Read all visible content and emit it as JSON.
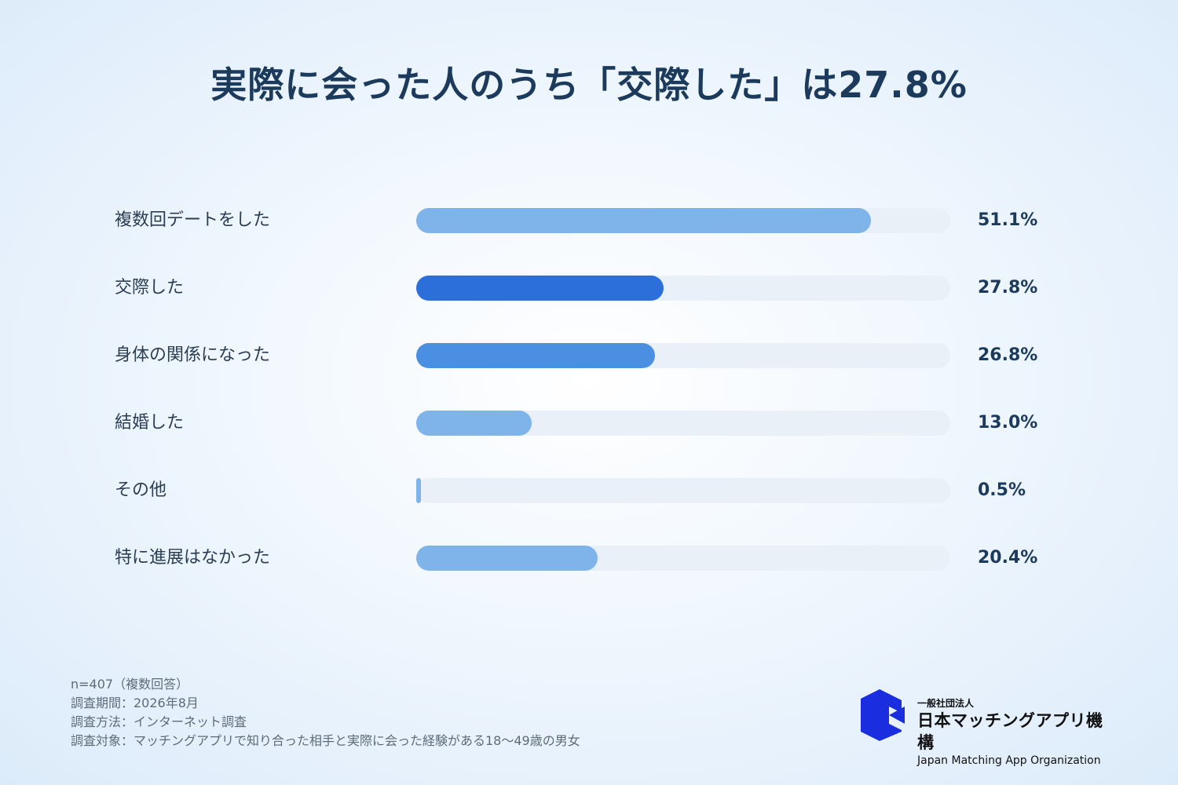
{
  "chart_data": {
    "type": "bar",
    "orientation": "horizontal",
    "title": "実際に会った人のうち「交際した」は27.8%",
    "categories": [
      "複数回デートをした",
      "交際した",
      "身体の関係になった",
      "結婚した",
      "その他",
      "特に進展はなかった"
    ],
    "values": [
      51.1,
      27.8,
      26.8,
      13.0,
      0.5,
      20.4
    ],
    "value_labels": [
      "51.1%",
      "27.8%",
      "26.8%",
      "13.0%",
      "0.5%",
      "20.4%"
    ],
    "xlim": [
      0,
      60
    ],
    "grid": false,
    "legend": "none",
    "colors": [
      "#7fb4ea",
      "#2c6fdb",
      "#4a8fe2",
      "#7fb4ea",
      "#7fb4ea",
      "#7fb4ea"
    ],
    "track_color": "#e9f0f8"
  },
  "footnotes": [
    "n=407（複数回答）",
    "調査期間：2026年8月",
    "調査方法：インターネット調査",
    "調査対象：マッチングアプリで知り合った相手と実際に会った経験がある18〜49歳の男女"
  ],
  "logo": {
    "small": "一般社団法人",
    "name": "日本マッチングアプリ機構",
    "english": "Japan Matching App Organization",
    "color": "#1a2ee0"
  }
}
